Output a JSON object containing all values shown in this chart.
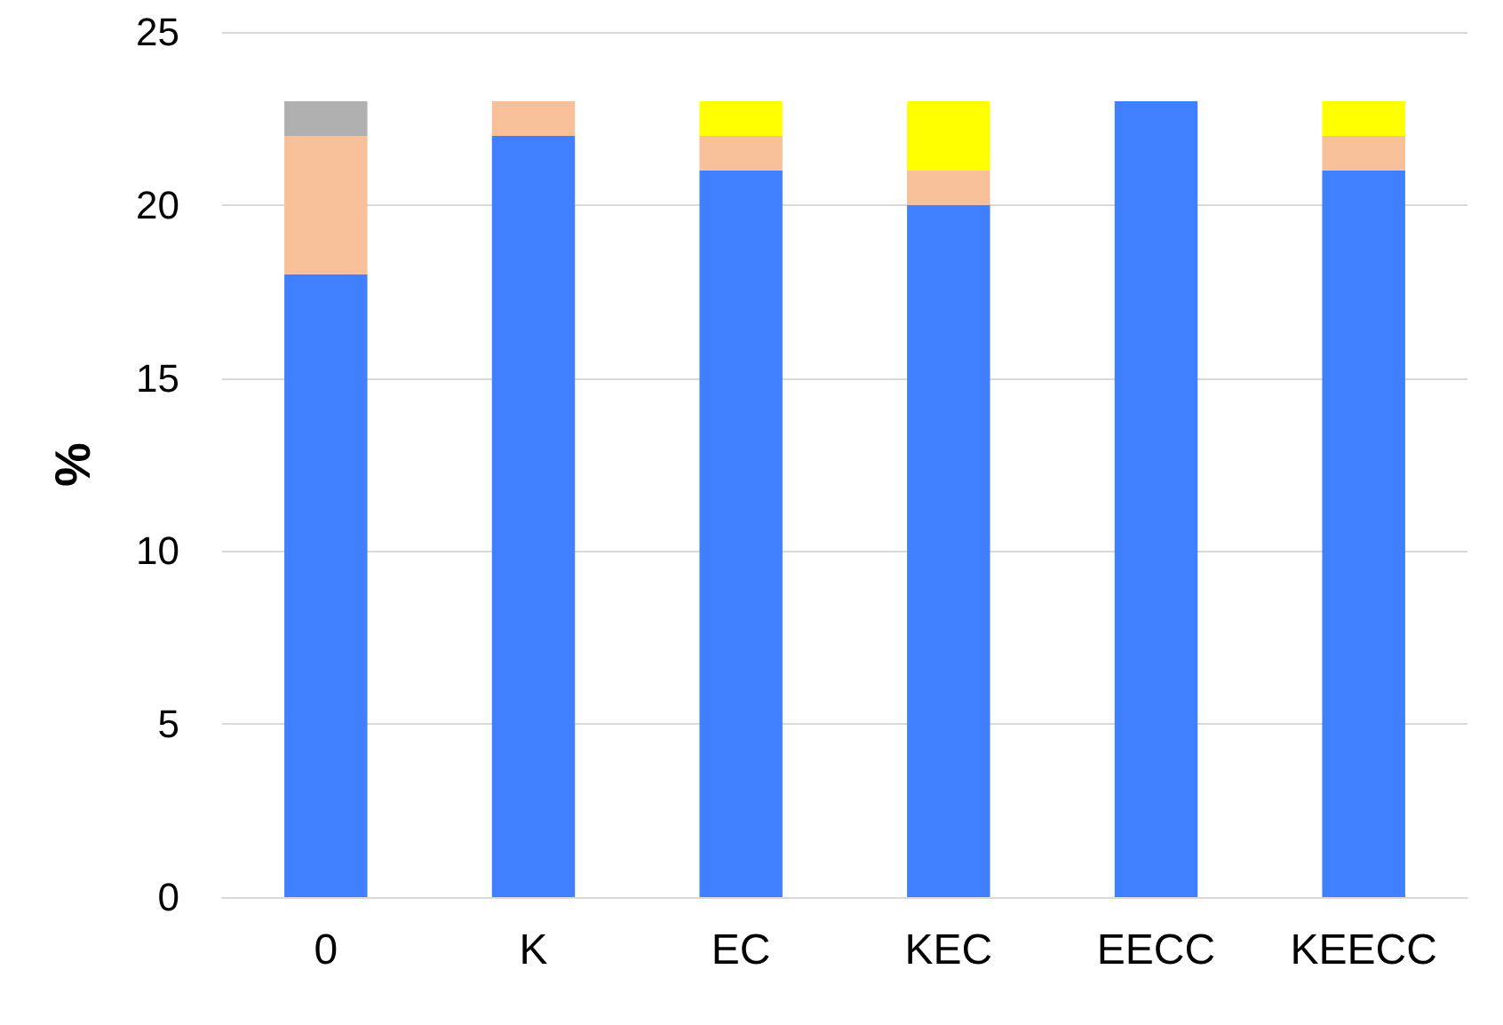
{
  "chart_data": {
    "type": "bar",
    "ylabel": "%",
    "categories": [
      "0",
      "K",
      "EC",
      "KEC",
      "EECC",
      "KEECC"
    ],
    "stacked": true,
    "grid": "y",
    "series": [
      {
        "color": "#4080ff",
        "values": [
          18,
          22,
          21,
          20,
          23,
          21
        ]
      },
      {
        "color": "#f8c098",
        "values": [
          4,
          1,
          1,
          1,
          null,
          1
        ]
      },
      {
        "color": "#b0b0b0",
        "values": [
          1,
          null,
          null,
          null,
          null,
          null
        ]
      },
      {
        "color": "#ffff00",
        "values": [
          null,
          null,
          1,
          2,
          null,
          1
        ]
      }
    ],
    "ylim": [
      0,
      25
    ],
    "yticks": [
      0,
      5,
      10,
      15,
      20,
      25
    ]
  }
}
